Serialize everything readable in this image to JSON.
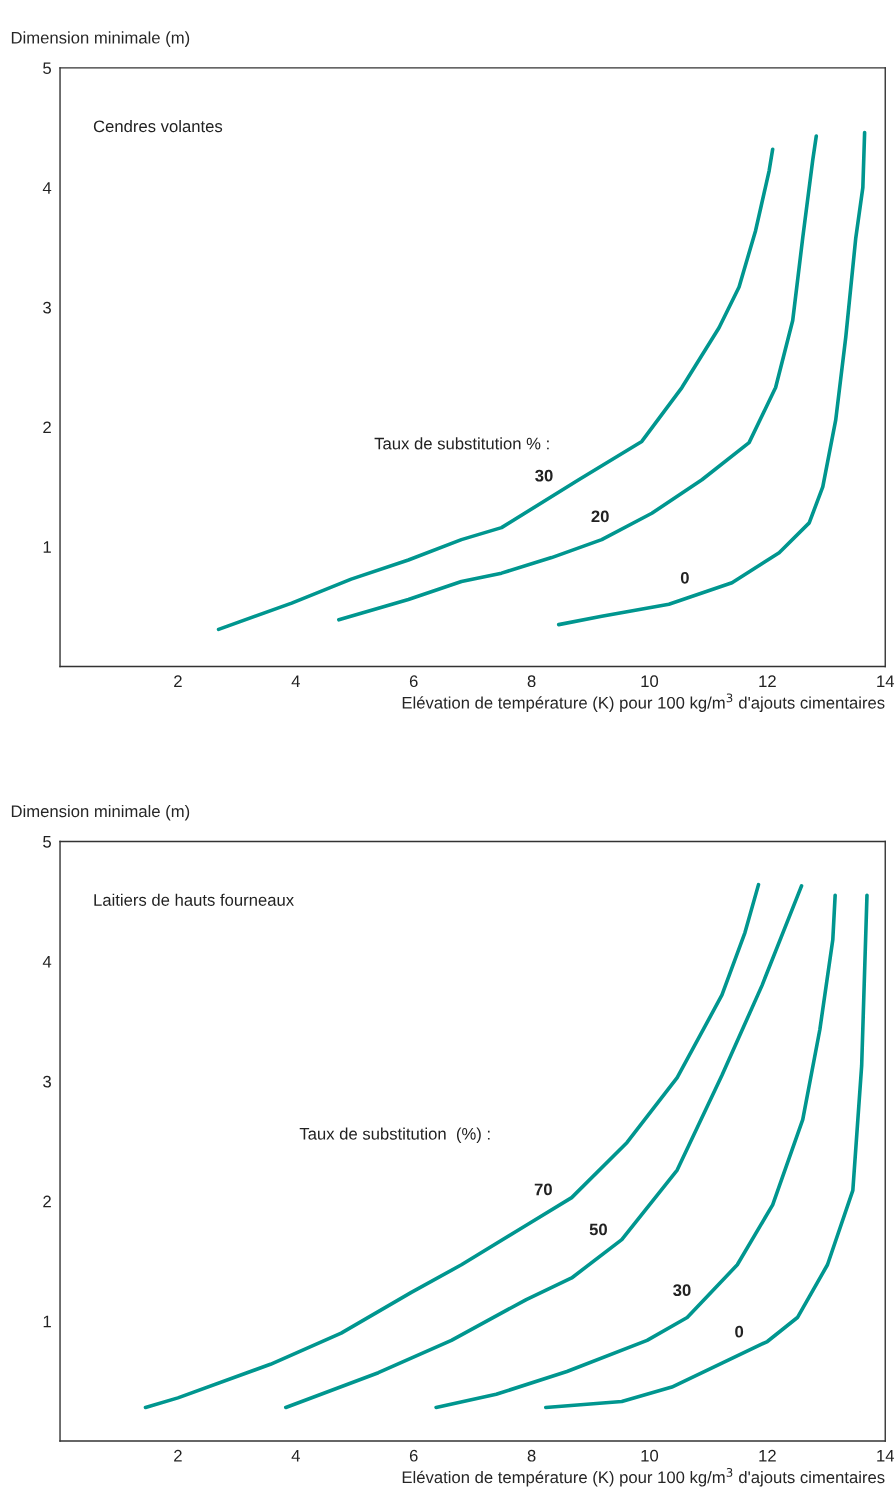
{
  "chart_data": [
    {
      "type": "line",
      "xlabel": "Elévation de température (K) pour 100 kg/m$^{3}$ d'ajouts cimentaires",
      "ylabel": "Dimension minimale (m)",
      "xlim": [
        0,
        14
      ],
      "xticks": [
        2,
        4,
        6,
        8,
        10,
        12,
        14
      ],
      "ylim": [
        0,
        5
      ],
      "yticks": [
        1,
        2,
        3,
        4,
        5
      ],
      "grid": false,
      "legend": false,
      "marker": "none",
      "line_style": "solid",
      "annotations": [
        "Cendres volantes",
        "Taux de substitution % :"
      ],
      "series": [
        {
          "name": "30",
          "color": "#00968f",
          "x": [
            2.69,
            3.93,
            4.94,
            5.91,
            6.81,
            7.49,
            8.8,
            9.87,
            10.55,
            11.18,
            11.52,
            11.8,
            12.03,
            12.09
          ],
          "values": [
            0.31,
            0.53,
            0.73,
            0.89,
            1.06,
            1.16,
            1.56,
            1.88,
            2.33,
            2.83,
            3.17,
            3.64,
            4.14,
            4.32
          ]
        },
        {
          "name": "20",
          "color": "#00968f",
          "x": [
            4.73,
            5.91,
            6.81,
            7.49,
            8.34,
            9.19,
            10.04,
            10.89,
            11.69,
            12.14,
            12.43,
            12.6,
            12.77,
            12.83
          ],
          "values": [
            0.39,
            0.56,
            0.71,
            0.78,
            0.91,
            1.06,
            1.28,
            1.56,
            1.87,
            2.33,
            2.89,
            3.58,
            4.23,
            4.43
          ]
        },
        {
          "name": "0",
          "color": "#00968f",
          "x": [
            8.46,
            9.19,
            10.33,
            11.4,
            12.2,
            12.71,
            12.94,
            13.16,
            13.33,
            13.5,
            13.62,
            13.65
          ],
          "values": [
            0.35,
            0.42,
            0.52,
            0.7,
            0.95,
            1.2,
            1.5,
            2.06,
            2.75,
            3.58,
            4.0,
            4.46
          ]
        }
      ]
    },
    {
      "type": "line",
      "xlabel": "Elévation de température (K) pour 100 kg/m$^{3}$ d'ajouts cimentaires",
      "ylabel": "Dimension minimale (m)",
      "xlim": [
        0,
        14
      ],
      "xticks": [
        2,
        4,
        6,
        8,
        10,
        12,
        14
      ],
      "ylim": [
        0,
        5
      ],
      "yticks": [
        1,
        2,
        3,
        4,
        5
      ],
      "grid": false,
      "legend": false,
      "marker": "none",
      "line_style": "solid",
      "annotations": [
        "Laitiers de hauts fourneaux",
        "Taux de substitution  (%) :"
      ],
      "series": [
        {
          "name": "70",
          "color": "#00968f",
          "x": [
            1.45,
            2.0,
            3.57,
            4.77,
            5.96,
            6.81,
            7.91,
            8.68,
            9.62,
            10.47,
            11.23,
            11.62,
            11.85
          ],
          "values": [
            0.28,
            0.36,
            0.64,
            0.9,
            1.24,
            1.47,
            1.8,
            2.03,
            2.49,
            3.03,
            3.72,
            4.24,
            4.64
          ]
        },
        {
          "name": "50",
          "color": "#00968f",
          "x": [
            3.83,
            5.4,
            6.64,
            7.91,
            8.68,
            9.53,
            10.47,
            11.23,
            11.91,
            12.58
          ],
          "values": [
            0.28,
            0.57,
            0.84,
            1.18,
            1.36,
            1.68,
            2.26,
            3.05,
            3.8,
            4.63
          ]
        },
        {
          "name": "30",
          "color": "#00968f",
          "x": [
            6.38,
            7.4,
            8.6,
            9.96,
            10.64,
            11.49,
            12.09,
            12.6,
            12.89,
            13.11,
            13.15
          ],
          "values": [
            0.28,
            0.39,
            0.58,
            0.84,
            1.03,
            1.47,
            1.97,
            2.68,
            3.43,
            4.18,
            4.55
          ]
        },
        {
          "name": "0",
          "color": "#00968f",
          "x": [
            8.24,
            9.53,
            10.38,
            11.23,
            12.0,
            12.51,
            13.02,
            13.45,
            13.6,
            13.69
          ],
          "values": [
            0.28,
            0.33,
            0.45,
            0.65,
            0.83,
            1.03,
            1.47,
            2.09,
            3.13,
            4.55
          ]
        }
      ]
    }
  ]
}
